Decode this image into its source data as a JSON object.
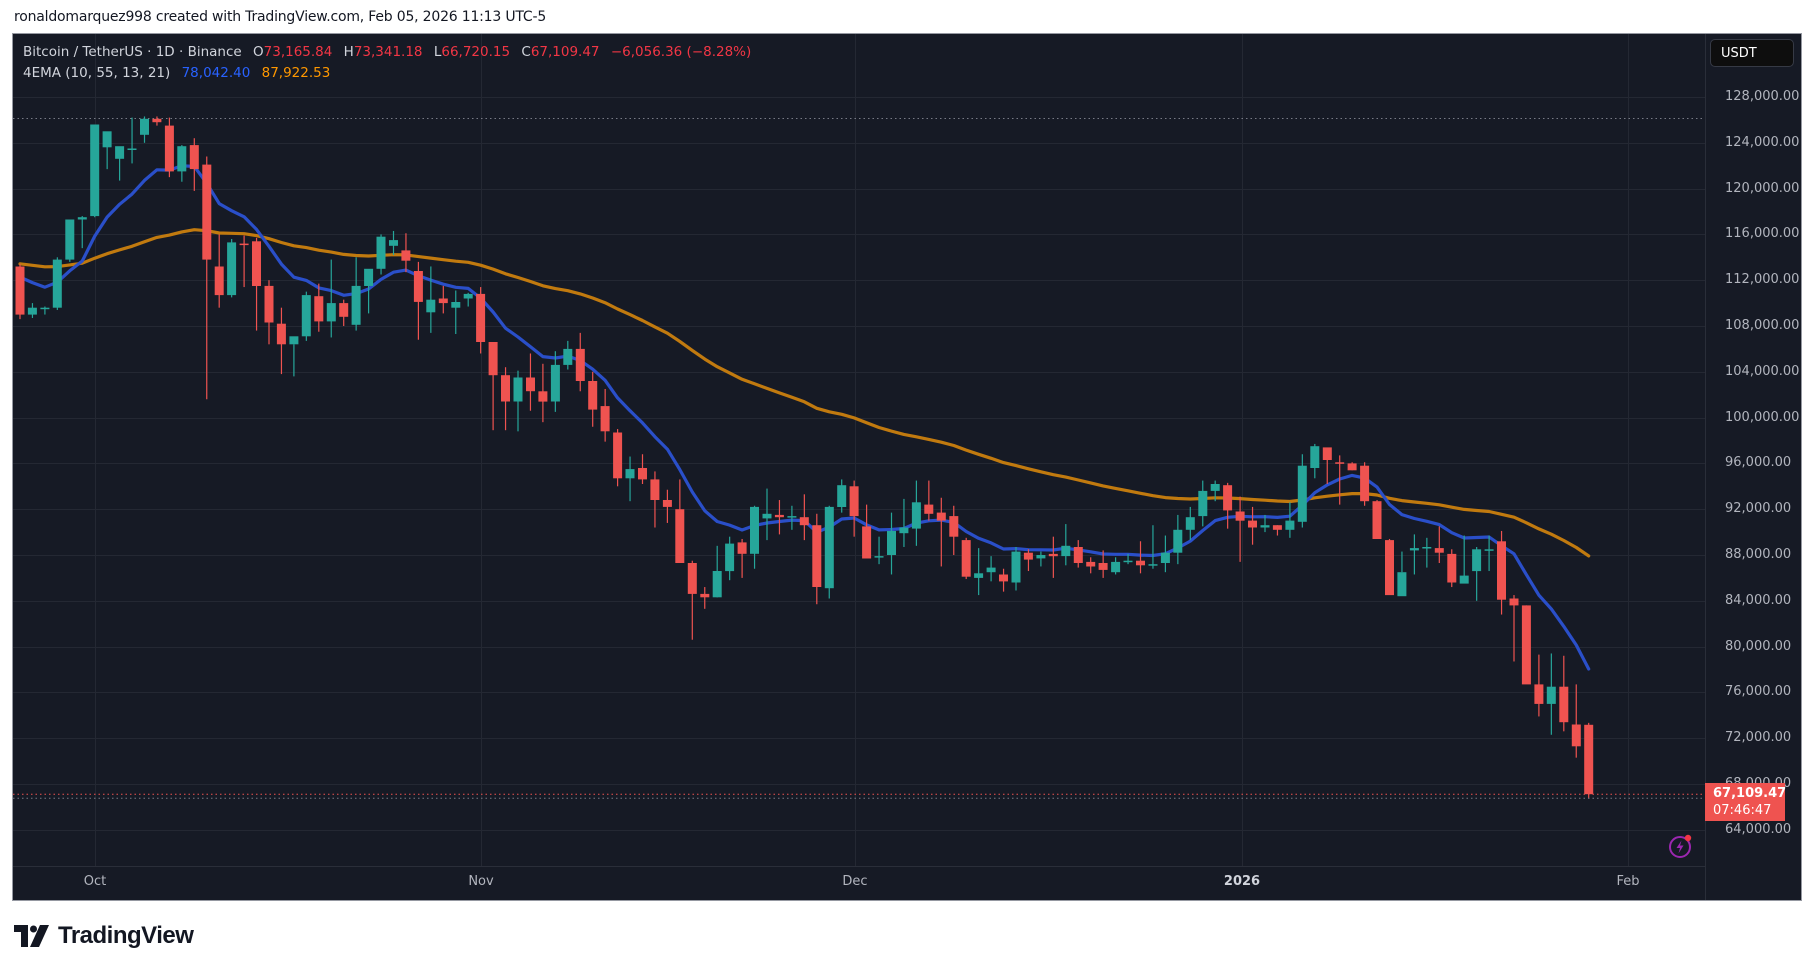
{
  "credit": "ronaldomarquez998 created with TradingView.com, Feb 05, 2026 11:13 UTC-5",
  "legend": {
    "symbol": "Bitcoin / TetherUS · 1D · Binance",
    "o_label": "O",
    "o_value": "73,165.84",
    "h_label": "H",
    "h_value": "73,341.18",
    "l_label": "L",
    "l_value": "66,720.15",
    "c_label": "C",
    "c_value": "67,109.47",
    "change": "−6,056.36 (−8.28%)",
    "indicator": "4EMA (10, 55, 13, 21)",
    "ema_fast_value": "78,042.40",
    "ema_slow_value": "87,922.53"
  },
  "currency_button": "USDT",
  "price_axis": [
    "128,000.00",
    "124,000.00",
    "120,000.00",
    "116,000.00",
    "112,000.00",
    "108,000.00",
    "104,000.00",
    "100,000.00",
    "96,000.00",
    "92,000.00",
    "88,000.00",
    "84,000.00",
    "80,000.00",
    "76,000.00",
    "72,000.00",
    "68,000.00",
    "64,000.00"
  ],
  "last_price": {
    "price": "67,109.47",
    "countdown": "07:46:47"
  },
  "time_axis": [
    {
      "label": "Oct",
      "bold": false
    },
    {
      "label": "Nov",
      "bold": false
    },
    {
      "label": "Dec",
      "bold": false
    },
    {
      "label": "2026",
      "bold": true
    },
    {
      "label": "Feb",
      "bold": false
    }
  ],
  "logo_text": "TradingView",
  "colors": {
    "up": "#26a69a",
    "down": "#ef5350",
    "ema_fast": "#2a4fc9",
    "ema_slow": "#c17a0f",
    "bg": "#161a25",
    "grid": "#242833"
  },
  "chart_data": {
    "type": "candlestick",
    "title": "Bitcoin / TetherUS · 1D · Binance",
    "xlabel": "",
    "ylabel": "USDT",
    "ylim": [
      62000,
      130500
    ],
    "start_date": "2025-09-25",
    "end_date": "2026-02-05",
    "ohlc_columns": [
      "open",
      "high",
      "low",
      "close"
    ],
    "candles": [
      [
        113200,
        113400,
        108600,
        109000
      ],
      [
        109000,
        110000,
        108700,
        109600
      ],
      [
        109600,
        109700,
        109000,
        109600
      ],
      [
        109600,
        114000,
        109400,
        113800
      ],
      [
        113800,
        117300,
        113600,
        117300
      ],
      [
        117300,
        117600,
        114800,
        117500
      ],
      [
        117600,
        125600,
        117500,
        125600
      ],
      [
        123600,
        124600,
        121700,
        125000
      ],
      [
        122600,
        123600,
        120700,
        123700
      ],
      [
        123400,
        126200,
        122200,
        123500
      ],
      [
        124700,
        126300,
        124000,
        126100
      ],
      [
        126100,
        126300,
        125500,
        125800
      ],
      [
        125500,
        126200,
        121000,
        121500
      ],
      [
        121500,
        123800,
        120600,
        123700
      ],
      [
        123800,
        124400,
        119800,
        121700
      ],
      [
        122100,
        122800,
        101600,
        113800
      ],
      [
        113200,
        116000,
        109600,
        110700
      ],
      [
        110700,
        115600,
        110500,
        115300
      ],
      [
        115200,
        115900,
        111400,
        115100
      ],
      [
        115400,
        115700,
        107600,
        111500
      ],
      [
        111500,
        112000,
        106400,
        108300
      ],
      [
        108200,
        109600,
        103800,
        106400
      ],
      [
        106400,
        106400,
        103600,
        107100
      ],
      [
        107100,
        111000,
        106700,
        110700
      ],
      [
        110600,
        111700,
        107500,
        108400
      ],
      [
        108400,
        113800,
        107000,
        110000
      ],
      [
        110000,
        110300,
        108000,
        108800
      ],
      [
        108100,
        114000,
        107600,
        111500
      ],
      [
        111500,
        112500,
        109100,
        113000
      ],
      [
        113000,
        116000,
        112500,
        115800
      ],
      [
        115000,
        116300,
        114200,
        115500
      ],
      [
        114600,
        116100,
        112700,
        113700
      ],
      [
        112800,
        113600,
        106800,
        110100
      ],
      [
        109200,
        113200,
        107400,
        110300
      ],
      [
        110400,
        111500,
        109100,
        110000
      ],
      [
        109600,
        111100,
        107300,
        110100
      ],
      [
        110400,
        110900,
        109700,
        110800
      ],
      [
        110800,
        111400,
        105600,
        106600
      ],
      [
        106600,
        106600,
        98900,
        103700
      ],
      [
        103700,
        104400,
        98900,
        101400
      ],
      [
        101400,
        104100,
        98800,
        103500
      ],
      [
        103500,
        105600,
        100600,
        102300
      ],
      [
        102300,
        104700,
        99600,
        101400
      ],
      [
        101400,
        105800,
        100500,
        104600
      ],
      [
        104600,
        106700,
        104200,
        106000
      ],
      [
        106000,
        107400,
        102300,
        103200
      ],
      [
        103200,
        104000,
        99200,
        100700
      ],
      [
        101000,
        102500,
        97900,
        98800
      ],
      [
        98700,
        99000,
        94000,
        94700
      ],
      [
        94700,
        96600,
        92700,
        95500
      ],
      [
        95600,
        96800,
        94200,
        94600
      ],
      [
        94600,
        95300,
        90400,
        92800
      ],
      [
        92800,
        93700,
        90800,
        92200
      ],
      [
        92000,
        94600,
        87500,
        87300
      ],
      [
        87300,
        87500,
        80600,
        84600
      ],
      [
        84600,
        85200,
        83300,
        84300
      ],
      [
        84300,
        88800,
        84300,
        86600
      ],
      [
        86600,
        89600,
        85800,
        89000
      ],
      [
        89100,
        89400,
        86000,
        88100
      ],
      [
        88100,
        92300,
        86800,
        92200
      ],
      [
        91200,
        93800,
        89300,
        91600
      ],
      [
        91500,
        92800,
        89800,
        91300
      ],
      [
        91300,
        92300,
        90200,
        91400
      ],
      [
        91300,
        93300,
        89300,
        90600
      ],
      [
        90600,
        91600,
        83700,
        85200
      ],
      [
        85100,
        92300,
        84200,
        92200
      ],
      [
        92200,
        94600,
        91700,
        94100
      ],
      [
        94000,
        94500,
        89600,
        91400
      ],
      [
        90500,
        92400,
        87800,
        87700
      ],
      [
        87800,
        89600,
        87200,
        87900
      ],
      [
        88000,
        91700,
        86300,
        90100
      ],
      [
        89900,
        92900,
        88700,
        90400
      ],
      [
        90300,
        94500,
        88800,
        92600
      ],
      [
        92400,
        94500,
        91000,
        91600
      ],
      [
        91700,
        93000,
        87000,
        91000
      ],
      [
        91400,
        92300,
        88000,
        89600
      ],
      [
        89300,
        89500,
        85900,
        86100
      ],
      [
        86000,
        88600,
        84500,
        86400
      ],
      [
        86500,
        87900,
        85700,
        86900
      ],
      [
        86300,
        86800,
        84800,
        85700
      ],
      [
        85600,
        88700,
        84900,
        88300
      ],
      [
        88200,
        88500,
        86600,
        87600
      ],
      [
        87700,
        88300,
        87000,
        88000
      ],
      [
        88100,
        89600,
        86000,
        87900
      ],
      [
        87900,
        90700,
        87100,
        88800
      ],
      [
        88700,
        89300,
        86900,
        87300
      ],
      [
        87400,
        87800,
        86400,
        87000
      ],
      [
        87300,
        88400,
        86000,
        86700
      ],
      [
        86500,
        87800,
        86300,
        87400
      ],
      [
        87400,
        88100,
        87200,
        87500
      ],
      [
        87500,
        89200,
        86400,
        87100
      ],
      [
        87100,
        90600,
        86800,
        87200
      ],
      [
        87300,
        89700,
        86500,
        88200
      ],
      [
        88200,
        91500,
        87200,
        90200
      ],
      [
        90200,
        92200,
        89300,
        91300
      ],
      [
        91400,
        94500,
        90500,
        93600
      ],
      [
        93600,
        94500,
        92700,
        94200
      ],
      [
        94100,
        94300,
        90300,
        91900
      ],
      [
        91800,
        93100,
        87400,
        91000
      ],
      [
        91000,
        92200,
        88900,
        90400
      ],
      [
        90400,
        91500,
        90000,
        90600
      ],
      [
        90600,
        90600,
        89700,
        90200
      ],
      [
        90200,
        92600,
        89500,
        91000
      ],
      [
        90900,
        96800,
        90400,
        95800
      ],
      [
        95600,
        97700,
        94700,
        97500
      ],
      [
        97400,
        97100,
        94200,
        96300
      ],
      [
        96100,
        96700,
        92400,
        96000
      ],
      [
        96000,
        96100,
        95400,
        95400
      ],
      [
        95800,
        96100,
        92300,
        92700
      ],
      [
        92700,
        92800,
        89900,
        89400
      ],
      [
        89300,
        89400,
        86600,
        84500
      ],
      [
        84400,
        88300,
        86500,
        86500
      ],
      [
        88400,
        89800,
        86300,
        88600
      ],
      [
        88600,
        89500,
        86900,
        88700
      ],
      [
        88600,
        90500,
        87300,
        88200
      ],
      [
        88100,
        88500,
        85200,
        85600
      ],
      [
        85500,
        89700,
        86100,
        86200
      ],
      [
        86600,
        88700,
        84000,
        88500
      ],
      [
        88500,
        89700,
        86600,
        88500
      ],
      [
        89200,
        90100,
        82800,
        84100
      ],
      [
        84200,
        84500,
        78700,
        83600
      ],
      [
        83600,
        83600,
        78000,
        76700
      ],
      [
        76700,
        79300,
        73900,
        75000
      ],
      [
        75000,
        79400,
        72300,
        76500
      ],
      [
        76500,
        79200,
        72600,
        73400
      ],
      [
        73200,
        76700,
        70300,
        71300
      ],
      [
        73166,
        73341,
        66720,
        67109
      ]
    ],
    "series": [
      {
        "name": "EMA fast (blue)",
        "last": 78042.4
      },
      {
        "name": "EMA slow (orange)",
        "last": 87922.53
      }
    ],
    "current_price": 67109.47,
    "ath_dotted_line": 126200
  }
}
